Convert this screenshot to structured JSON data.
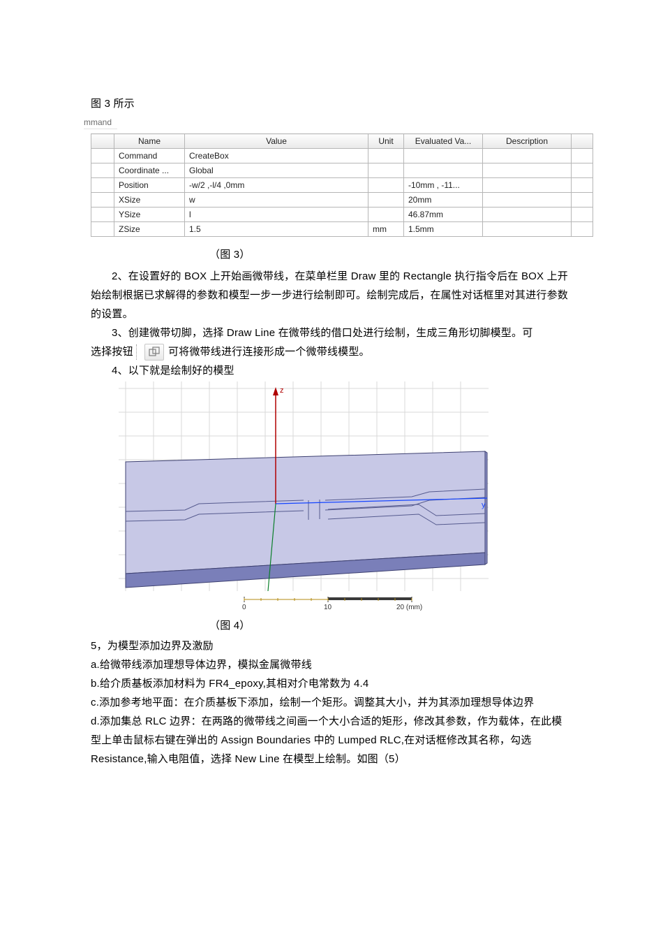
{
  "intro_line": "图 3 所示",
  "tab_label": "mmand",
  "prop_table": {
    "columns": [
      "",
      "Name",
      "Value",
      "Unit",
      "Evaluated Va...",
      "Description",
      ""
    ],
    "rows": [
      {
        "name": "Command",
        "value": "CreateBox",
        "unit": "",
        "eval": "",
        "desc": ""
      },
      {
        "name": "Coordinate ...",
        "value": "Global",
        "unit": "",
        "eval": "",
        "desc": ""
      },
      {
        "name": "Position",
        "value": "-w/2 ,-l/4 ,0mm",
        "unit": "",
        "eval": "-10mm , -11...",
        "desc": ""
      },
      {
        "name": "XSize",
        "value": "w",
        "unit": "",
        "eval": "20mm",
        "desc": ""
      },
      {
        "name": "YSize",
        "value": "l",
        "unit": "",
        "eval": "46.87mm",
        "desc": ""
      },
      {
        "name": "ZSize",
        "value": "1.5",
        "unit": "mm",
        "eval": "1.5mm",
        "desc": ""
      }
    ]
  },
  "fig3_caption": "（图 3）",
  "para2": "2、在设置好的 BOX 上开始画微带线，在菜单栏里 Draw 里的 Rectangle 执行指令后在 BOX 上开始绘制根据已求解得的参数和模型一步一步进行绘制即可。绘制完成后，在属性对话框里对其进行参数的设置。",
  "para3": "3、创建微带切脚，选择 Draw Line 在微带线的借口处进行绘制，生成三角形切脚模型。可",
  "para3b_a": "选择按钮",
  "para3b_b": "可将微带线进行连接形成一个微带线模型。",
  "para4": "4、以下就是绘制好的模型",
  "model": {
    "grid_color": "#d9d9d9",
    "bg_color": "#ffffff",
    "face_top": "#c7c8e6",
    "face_side": "#8b8fc4",
    "face_front": "#7a7fb9",
    "edge_color": "#3d4070",
    "line_color": "#555a8e",
    "axis_x": "#b00000",
    "axis_y": "#1545ff",
    "axis_z": "#0a7f2a",
    "ruler_line": "#b38b12",
    "ruler_dark": "#3a3a3a",
    "ruler_text": "#333333",
    "scale_labels": [
      "0",
      "10",
      "20 (mm)"
    ]
  },
  "fig4_caption": "（图 4）",
  "sec5_title": "5，为模型添加边界及激励",
  "sec5_a": "a.给微带线添加理想导体边界，模拟金属微带线",
  "sec5_b": "b.给介质基板添加材料为 FR4_epoxy,其相对介电常数为 4.4",
  "sec5_c": "c.添加参考地平面：在介质基板下添加，绘制一个矩形。调整其大小，并为其添加理想导体边界",
  "sec5_d": "d.添加集总 RLC 边界：在两路的微带线之间画一个大小合适的矩形，修改其参数，作为载体，在此模型上单击鼠标右键在弹出的 Assign Boundaries 中的 Lumped RLC,在对话框修改其名称，勾选 Resistance,输入电阻值，选择 New Line 在模型上绘制。如图（5）"
}
